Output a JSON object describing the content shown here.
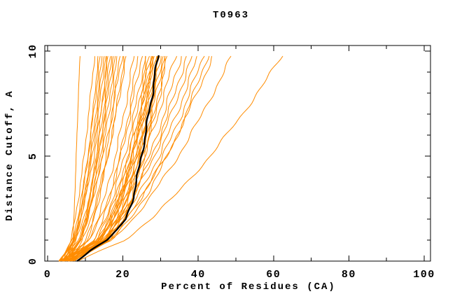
{
  "header": {
    "title": "T0963"
  },
  "axes": {
    "x_label": "Percent of Residues (CA)",
    "y_label": "Distance Cutoff, A",
    "x_tick_labels": [
      "0",
      "20",
      "40",
      "60",
      "80",
      "100"
    ],
    "y_tick_labels": [
      "0",
      "5",
      "10"
    ]
  },
  "chart_data": {
    "type": "line",
    "title": "T0963",
    "xlabel": "Percent of Residues (CA)",
    "ylabel": "Distance Cutoff, A",
    "xlim": [
      0,
      100
    ],
    "ylim": [
      0,
      10
    ],
    "grid": false,
    "legend": "none",
    "x_major_ticks": [
      0,
      20,
      40,
      60,
      80,
      100
    ],
    "x_minor_ticks": [
      10,
      30,
      50,
      70,
      90
    ],
    "y_major_ticks": [
      0,
      5,
      10
    ],
    "y_minor_ticks": [
      1,
      2,
      3,
      4,
      6,
      7,
      8,
      9
    ],
    "colors": {
      "model_lines": "#ff8c00",
      "median_line": "#000000",
      "frame": "#000000"
    },
    "median_line": {
      "name": "consensus-median",
      "cutoffs": [
        0,
        0.5,
        1,
        1.5,
        2,
        3,
        4,
        5,
        6,
        7,
        8,
        9,
        9.8
      ],
      "percents": [
        7.8,
        11.2,
        15.6,
        18.6,
        20.8,
        22.7,
        23.8,
        24.9,
        26.0,
        26.8,
        27.9,
        28.6,
        29.4
      ]
    },
    "model_lines": {
      "cutoffs": [
        0,
        1,
        2,
        3,
        5,
        7,
        9.8
      ],
      "series": [
        [
          6.5,
          6.7,
          7.0,
          7.2,
          7.6,
          8.0,
          8.6
        ],
        [
          4.0,
          6.2,
          7.3,
          8.2,
          9.7,
          10.9,
          12.5
        ],
        [
          4.5,
          7.1,
          8.3,
          9.2,
          10.7,
          12.0,
          13.5
        ],
        [
          3.5,
          6.5,
          7.9,
          9.0,
          10.8,
          12.2,
          14.0
        ],
        [
          5.0,
          7.4,
          8.7,
          9.7,
          11.3,
          12.8,
          14.5
        ],
        [
          3.0,
          6.8,
          8.4,
          9.6,
          11.6,
          13.1,
          15.0
        ],
        [
          4.0,
          7.2,
          8.8,
          9.9,
          11.9,
          13.5,
          15.4
        ],
        [
          5.5,
          8.8,
          10.2,
          11.2,
          12.9,
          14.2,
          15.8
        ],
        [
          3.5,
          7.1,
          8.8,
          10.1,
          12.3,
          14.1,
          16.2
        ],
        [
          4.5,
          8.4,
          10.0,
          11.2,
          13.1,
          14.7,
          16.6
        ],
        [
          6.0,
          9.1,
          10.6,
          11.7,
          13.6,
          15.1,
          17.0
        ],
        [
          3.0,
          7.6,
          9.6,
          11.0,
          13.4,
          15.3,
          17.5
        ],
        [
          5.0,
          8.7,
          10.4,
          11.8,
          14.0,
          15.8,
          18.0
        ],
        [
          4.0,
          8.7,
          10.6,
          12.1,
          14.4,
          16.3,
          18.6
        ],
        [
          6.5,
          10.6,
          12.2,
          13.5,
          15.6,
          17.2,
          19.2
        ],
        [
          3.5,
          8.1,
          10.3,
          12.0,
          14.8,
          17.0,
          19.8
        ],
        [
          5.5,
          10.3,
          12.2,
          13.7,
          16.1,
          18.1,
          20.4
        ],
        [
          4.5,
          9.2,
          11.4,
          13.1,
          15.9,
          18.2,
          21.0
        ],
        [
          4.0,
          10.8,
          13.3,
          15.2,
          18.0,
          20.3,
          23.0
        ],
        [
          6.0,
          12.4,
          14.8,
          16.6,
          19.3,
          21.5,
          24.0
        ],
        [
          3.5,
          11.2,
          14.0,
          16.1,
          19.4,
          22.0,
          25.0
        ],
        [
          5.0,
          12.5,
          15.3,
          17.3,
          20.5,
          23.0,
          26.0
        ],
        [
          4.5,
          13.3,
          16.2,
          18.2,
          21.3,
          23.7,
          26.5
        ],
        [
          7.0,
          15.0,
          17.6,
          19.5,
          22.3,
          24.5,
          27.0
        ],
        [
          3.0,
          12.7,
          15.9,
          18.1,
          21.6,
          24.2,
          27.3
        ],
        [
          5.5,
          14.4,
          17.2,
          19.3,
          22.4,
          24.8,
          27.6
        ],
        [
          4.0,
          13.6,
          16.7,
          18.9,
          22.3,
          24.9,
          27.9
        ],
        [
          6.5,
          15.2,
          18.0,
          20.0,
          23.1,
          25.5,
          28.2
        ],
        [
          3.5,
          13.5,
          16.8,
          19.1,
          22.6,
          25.4,
          28.5
        ],
        [
          5.0,
          13.5,
          16.6,
          19.0,
          22.6,
          25.4,
          28.8
        ],
        [
          7.5,
          16.2,
          18.9,
          21.0,
          24.0,
          26.4,
          29.1
        ],
        [
          4.0,
          14.2,
          17.5,
          19.8,
          23.4,
          26.2,
          29.4
        ],
        [
          6.0,
          15.5,
          18.6,
          20.8,
          24.2,
          26.8,
          29.8
        ],
        [
          3.0,
          13.9,
          17.4,
          19.9,
          23.8,
          26.8,
          30.2
        ],
        [
          5.5,
          15.6,
          18.8,
          21.1,
          24.7,
          27.4,
          30.6
        ],
        [
          4.5,
          15.1,
          18.5,
          21.0,
          24.7,
          27.7,
          31.0
        ],
        [
          7.0,
          16.8,
          20.0,
          22.3,
          25.7,
          28.4,
          31.5
        ],
        [
          5.0,
          15.8,
          19.3,
          21.8,
          25.6,
          28.6,
          32.0
        ],
        [
          4.0,
          13.6,
          17.6,
          20.6,
          25.4,
          29.4,
          34.0
        ],
        [
          6.0,
          15.4,
          19.3,
          22.3,
          27.1,
          30.9,
          35.5
        ],
        [
          4.5,
          14.9,
          19.2,
          22.5,
          27.7,
          32.0,
          37.0
        ],
        [
          5.5,
          14.9,
          19.3,
          22.7,
          28.3,
          32.9,
          38.5
        ],
        [
          3.5,
          15.1,
          20.0,
          23.7,
          29.6,
          34.3,
          40.0
        ],
        [
          6.5,
          16.5,
          21.1,
          24.7,
          30.7,
          35.6,
          41.5
        ],
        [
          5.0,
          17.0,
          22.0,
          25.8,
          31.9,
          36.8,
          42.6
        ],
        [
          4.0,
          15.4,
          20.7,
          24.8,
          31.6,
          37.2,
          44.0
        ],
        [
          6.0,
          16.9,
          22.6,
          27.2,
          34.7,
          41.1,
          49.0
        ],
        [
          8.0,
          20.4,
          27.4,
          33.2,
          43.2,
          51.8,
          62.5
        ]
      ]
    }
  }
}
